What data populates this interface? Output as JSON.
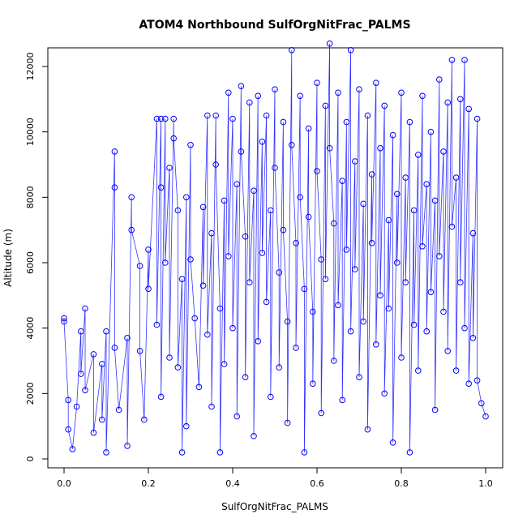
{
  "chart_data": {
    "type": "scatter",
    "title": "ATOM4 Northbound SulfOrgNitFrac_PALMS",
    "xlabel": "SulfOrgNitFrac_PALMS",
    "ylabel": "Altitude (m)",
    "xlim": [
      0.0,
      1.0
    ],
    "ylim": [
      0,
      12000
    ],
    "x_ticks": [
      0.0,
      0.2,
      0.4,
      0.6,
      0.8,
      1.0
    ],
    "x_tick_labels": [
      "0.0",
      "0.2",
      "0.4",
      "0.6",
      "0.8",
      "1.0"
    ],
    "y_ticks": [
      0,
      2000,
      4000,
      6000,
      8000,
      10000,
      12000
    ],
    "y_tick_labels": [
      "0",
      "2000",
      "4000",
      "6000",
      "8000",
      "10000",
      "12000"
    ],
    "grid": false,
    "legend": "none",
    "marker": "open-circle",
    "connected": true,
    "series_color": "#0000ff",
    "series": [
      {
        "points": [
          [
            0.0,
            4300
          ],
          [
            0.0,
            4200
          ],
          [
            0.01,
            1800
          ],
          [
            0.01,
            900
          ],
          [
            0.02,
            300
          ],
          [
            0.03,
            1600
          ],
          [
            0.04,
            3900
          ],
          [
            0.04,
            2600
          ],
          [
            0.05,
            4600
          ],
          [
            0.05,
            2100
          ],
          [
            0.07,
            3200
          ],
          [
            0.07,
            800
          ],
          [
            0.09,
            2900
          ],
          [
            0.09,
            1200
          ],
          [
            0.1,
            3900
          ],
          [
            0.1,
            200
          ],
          [
            0.12,
            9400
          ],
          [
            0.12,
            8300
          ],
          [
            0.12,
            3400
          ],
          [
            0.13,
            1500
          ],
          [
            0.15,
            3700
          ],
          [
            0.15,
            400
          ],
          [
            0.16,
            8000
          ],
          [
            0.16,
            7000
          ],
          [
            0.18,
            5900
          ],
          [
            0.18,
            3300
          ],
          [
            0.19,
            1200
          ],
          [
            0.2,
            6400
          ],
          [
            0.2,
            5200
          ],
          [
            0.22,
            10400
          ],
          [
            0.22,
            4100
          ],
          [
            0.23,
            10400
          ],
          [
            0.23,
            8300
          ],
          [
            0.23,
            1900
          ],
          [
            0.24,
            10400
          ],
          [
            0.24,
            6000
          ],
          [
            0.25,
            8900
          ],
          [
            0.25,
            3100
          ],
          [
            0.26,
            10400
          ],
          [
            0.26,
            9800
          ],
          [
            0.27,
            7600
          ],
          [
            0.27,
            2800
          ],
          [
            0.28,
            5500
          ],
          [
            0.28,
            200
          ],
          [
            0.29,
            8000
          ],
          [
            0.29,
            1000
          ],
          [
            0.3,
            9600
          ],
          [
            0.3,
            6100
          ],
          [
            0.31,
            4300
          ],
          [
            0.32,
            2200
          ],
          [
            0.33,
            7700
          ],
          [
            0.33,
            5300
          ],
          [
            0.34,
            10500
          ],
          [
            0.34,
            3800
          ],
          [
            0.35,
            6900
          ],
          [
            0.35,
            1600
          ],
          [
            0.36,
            10500
          ],
          [
            0.36,
            9000
          ],
          [
            0.37,
            4600
          ],
          [
            0.37,
            200
          ],
          [
            0.38,
            7900
          ],
          [
            0.38,
            2900
          ],
          [
            0.39,
            11200
          ],
          [
            0.39,
            6200
          ],
          [
            0.4,
            10400
          ],
          [
            0.4,
            4000
          ],
          [
            0.41,
            8400
          ],
          [
            0.41,
            1300
          ],
          [
            0.42,
            11400
          ],
          [
            0.42,
            9400
          ],
          [
            0.43,
            6800
          ],
          [
            0.43,
            2500
          ],
          [
            0.44,
            10900
          ],
          [
            0.44,
            5400
          ],
          [
            0.45,
            8200
          ],
          [
            0.45,
            700
          ],
          [
            0.46,
            11100
          ],
          [
            0.46,
            3600
          ],
          [
            0.47,
            9700
          ],
          [
            0.47,
            6300
          ],
          [
            0.48,
            10500
          ],
          [
            0.48,
            4800
          ],
          [
            0.49,
            7600
          ],
          [
            0.49,
            1900
          ],
          [
            0.5,
            11300
          ],
          [
            0.5,
            8900
          ],
          [
            0.51,
            5700
          ],
          [
            0.51,
            2800
          ],
          [
            0.52,
            10300
          ],
          [
            0.52,
            7000
          ],
          [
            0.53,
            4200
          ],
          [
            0.53,
            1100
          ],
          [
            0.54,
            12500
          ],
          [
            0.54,
            9600
          ],
          [
            0.55,
            6600
          ],
          [
            0.55,
            3400
          ],
          [
            0.56,
            11100
          ],
          [
            0.56,
            8000
          ],
          [
            0.57,
            5200
          ],
          [
            0.57,
            200
          ],
          [
            0.58,
            10100
          ],
          [
            0.58,
            7400
          ],
          [
            0.59,
            4500
          ],
          [
            0.59,
            2300
          ],
          [
            0.6,
            11500
          ],
          [
            0.6,
            8800
          ],
          [
            0.61,
            6100
          ],
          [
            0.61,
            1400
          ],
          [
            0.62,
            10800
          ],
          [
            0.62,
            5500
          ],
          [
            0.63,
            12700
          ],
          [
            0.63,
            9500
          ],
          [
            0.64,
            7200
          ],
          [
            0.64,
            3000
          ],
          [
            0.65,
            11200
          ],
          [
            0.65,
            4700
          ],
          [
            0.66,
            8500
          ],
          [
            0.66,
            1800
          ],
          [
            0.67,
            10300
          ],
          [
            0.67,
            6400
          ],
          [
            0.68,
            12500
          ],
          [
            0.68,
            3900
          ],
          [
            0.69,
            9100
          ],
          [
            0.69,
            5800
          ],
          [
            0.7,
            11300
          ],
          [
            0.7,
            2500
          ],
          [
            0.71,
            7800
          ],
          [
            0.71,
            4200
          ],
          [
            0.72,
            10500
          ],
          [
            0.72,
            900
          ],
          [
            0.73,
            8700
          ],
          [
            0.73,
            6600
          ],
          [
            0.74,
            11500
          ],
          [
            0.74,
            3500
          ],
          [
            0.75,
            9500
          ],
          [
            0.75,
            5000
          ],
          [
            0.76,
            10800
          ],
          [
            0.76,
            2000
          ],
          [
            0.77,
            7300
          ],
          [
            0.77,
            4600
          ],
          [
            0.78,
            9900
          ],
          [
            0.78,
            500
          ],
          [
            0.79,
            8100
          ],
          [
            0.79,
            6000
          ],
          [
            0.8,
            11200
          ],
          [
            0.8,
            3100
          ],
          [
            0.81,
            8600
          ],
          [
            0.81,
            5400
          ],
          [
            0.82,
            10300
          ],
          [
            0.82,
            200
          ],
          [
            0.83,
            7600
          ],
          [
            0.83,
            4100
          ],
          [
            0.84,
            9300
          ],
          [
            0.84,
            2700
          ],
          [
            0.85,
            11100
          ],
          [
            0.85,
            6500
          ],
          [
            0.86,
            8400
          ],
          [
            0.86,
            3900
          ],
          [
            0.87,
            10000
          ],
          [
            0.87,
            5100
          ],
          [
            0.88,
            7900
          ],
          [
            0.88,
            1500
          ],
          [
            0.89,
            11600
          ],
          [
            0.89,
            6200
          ],
          [
            0.9,
            9400
          ],
          [
            0.9,
            4500
          ],
          [
            0.91,
            10900
          ],
          [
            0.91,
            3300
          ],
          [
            0.92,
            12200
          ],
          [
            0.92,
            7100
          ],
          [
            0.93,
            8600
          ],
          [
            0.93,
            2700
          ],
          [
            0.94,
            11000
          ],
          [
            0.94,
            5400
          ],
          [
            0.95,
            12200
          ],
          [
            0.95,
            4000
          ],
          [
            0.96,
            10700
          ],
          [
            0.96,
            2300
          ],
          [
            0.97,
            6900
          ],
          [
            0.97,
            3700
          ],
          [
            0.98,
            10400
          ],
          [
            0.98,
            2400
          ],
          [
            0.99,
            1700
          ],
          [
            1.0,
            1300
          ]
        ]
      }
    ]
  }
}
